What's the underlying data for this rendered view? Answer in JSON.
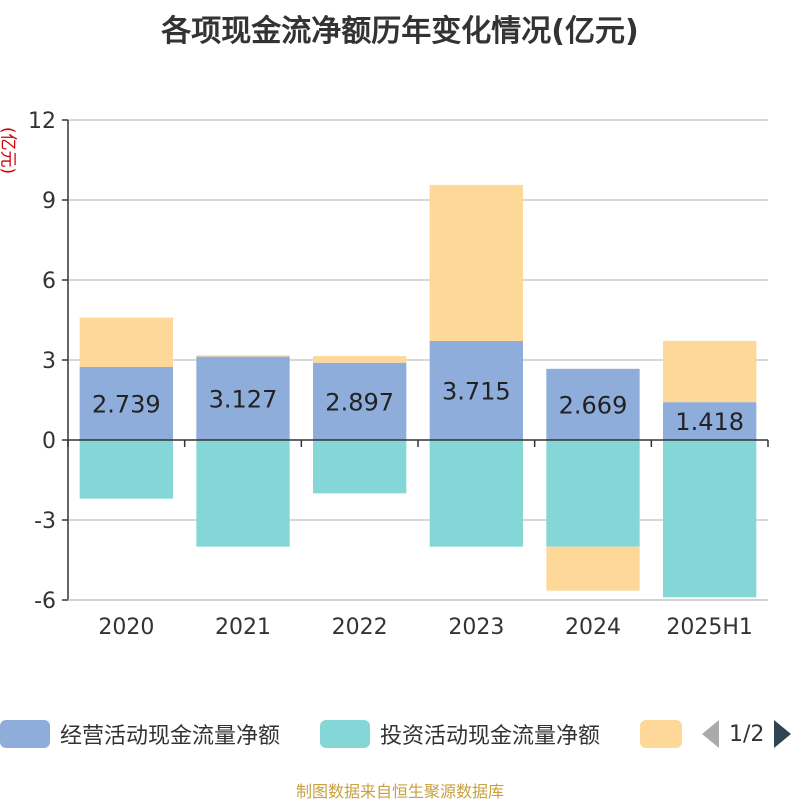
{
  "title": "各项现金流净额历年变化情况(亿元)",
  "unit_label": "(亿元)",
  "footer": "制图数据来自恒生聚源数据库",
  "legend": {
    "items": [
      {
        "label": "经营活动现金流量净额",
        "color": "#8eaddb"
      },
      {
        "label": "投资活动现金流量净额",
        "color": "#85d6d6"
      },
      {
        "label": "",
        "color": "#fdd899"
      }
    ],
    "page": "1/2"
  },
  "chart_data": {
    "type": "bar",
    "stacked": true,
    "categories": [
      "2020",
      "2021",
      "2022",
      "2023",
      "2024",
      "2025H1"
    ],
    "series": [
      {
        "name": "经营活动现金流量净额",
        "color": "#8eaddb",
        "values": [
          2.739,
          3.127,
          2.897,
          3.715,
          2.669,
          1.418
        ]
      },
      {
        "name": "投资活动现金流量净额",
        "color": "#85d6d6",
        "values": [
          -2.2,
          -4.0,
          -2.0,
          -4.0,
          -4.0,
          -5.9
        ]
      },
      {
        "name": "",
        "color": "#fdd899",
        "values": [
          1.85,
          0.05,
          0.25,
          5.85,
          -1.65,
          2.3
        ]
      }
    ],
    "data_labels": [
      "2.739",
      "3.127",
      "2.897",
      "3.715",
      "2.669",
      "1.418"
    ],
    "ylim": [
      -6,
      12
    ],
    "yticks": [
      "12",
      "9",
      "6",
      "3",
      "0",
      "-3",
      "-6"
    ],
    "ytick_values": [
      12,
      9,
      6,
      3,
      0,
      -3,
      -6
    ],
    "grid": true
  }
}
